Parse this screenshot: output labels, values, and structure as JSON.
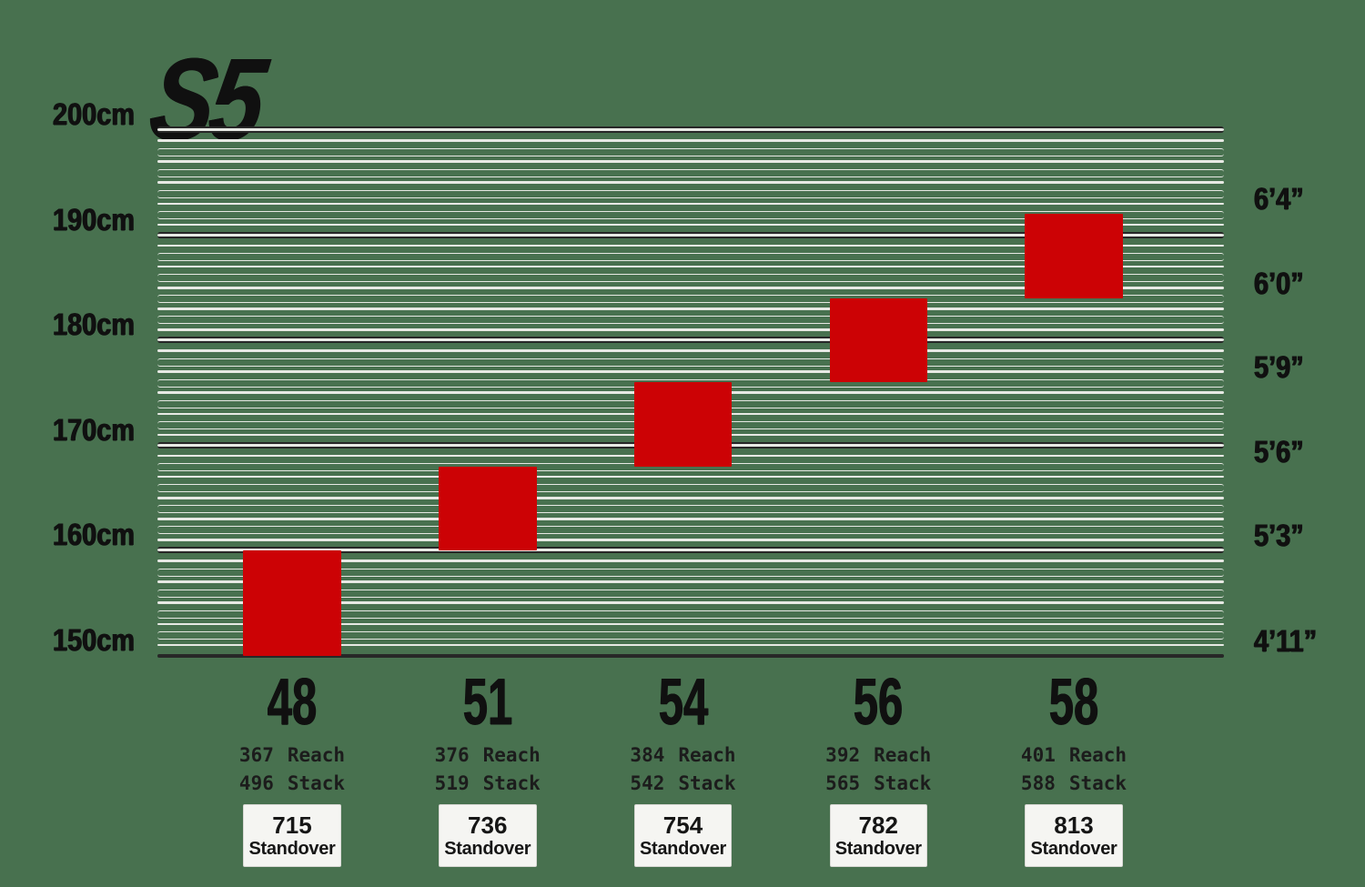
{
  "logo": "S5",
  "labels": {
    "reach": "Reach",
    "stack": "Stack",
    "standover": "Standover"
  },
  "colors": {
    "background": "#48714f",
    "block_red": "#cc0205",
    "line_light": "#e7e9e4",
    "line_dark": "#272727",
    "text_dark": "#101010",
    "logo_gray": "#d5d5d5",
    "box_bg": "#f5f5f2",
    "box_border": "#d8d8d4"
  },
  "chart_data": {
    "type": "bar",
    "title": "S5",
    "subtitle": "Bike frame size guide: rider height range per frame size",
    "orientation": "vertical range blocks on height ruler",
    "grid": "horizontal ruler line every 1 cm, dark major band every 10 cm, dark baseline at 150 cm",
    "legend_position": "none",
    "y_range_cm": [
      150,
      200
    ],
    "y_axis_left": {
      "unit": "cm",
      "ticks": [
        {
          "label": "200cm",
          "cm": 200
        },
        {
          "label": "190cm",
          "cm": 190
        },
        {
          "label": "180cm",
          "cm": 180
        },
        {
          "label": "170cm",
          "cm": 170
        },
        {
          "label": "160cm",
          "cm": 160
        },
        {
          "label": "150cm",
          "cm": 150
        }
      ]
    },
    "y_axis_right": {
      "unit": "feet-inches",
      "ticks": [
        {
          "label": "6’4”",
          "cm": 192
        },
        {
          "label": "6’0”",
          "cm": 184
        },
        {
          "label": "5’9”",
          "cm": 176
        },
        {
          "label": "5’6”",
          "cm": 168
        },
        {
          "label": "5’3”",
          "cm": 160
        },
        {
          "label": "4’11”",
          "cm": 150
        }
      ]
    },
    "sizes": [
      {
        "size": "48",
        "rider_height_cm": [
          150,
          160
        ],
        "reach": "367",
        "stack": "496",
        "standover": "715"
      },
      {
        "size": "51",
        "rider_height_cm": [
          160,
          168
        ],
        "reach": "376",
        "stack": "519",
        "standover": "736"
      },
      {
        "size": "54",
        "rider_height_cm": [
          168,
          176
        ],
        "reach": "384",
        "stack": "542",
        "standover": "754"
      },
      {
        "size": "56",
        "rider_height_cm": [
          176,
          184
        ],
        "reach": "392",
        "stack": "565",
        "standover": "782"
      },
      {
        "size": "58",
        "rider_height_cm": [
          184,
          192
        ],
        "reach": "401",
        "stack": "588",
        "standover": "813"
      }
    ]
  }
}
